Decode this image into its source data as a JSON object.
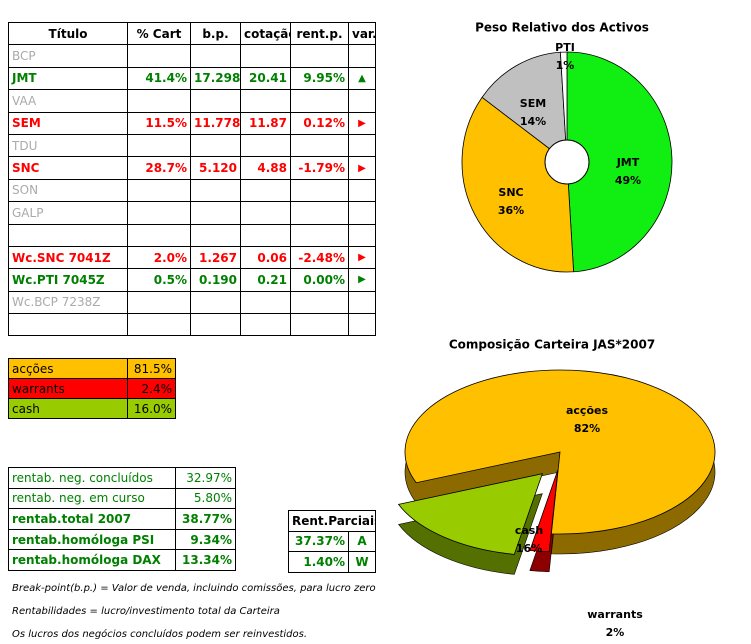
{
  "portfolio_table": {
    "header": [
      "Título",
      "% Cart",
      "b.p.",
      "cotação",
      "rent.p.",
      "var."
    ],
    "rows": [
      [
        "BCP"
      ],
      [
        "JMT",
        "41.4%",
        "17.298",
        "20.41",
        "9.95%",
        "▲"
      ],
      [
        "VAA"
      ],
      [
        "SEM",
        "11.5%",
        "11.778",
        "11.87",
        "0.12%",
        "▶"
      ],
      [
        "TDU"
      ],
      [
        "SNC",
        "28.7%",
        "5.120",
        "4.88",
        "-1.79%",
        "▶"
      ],
      [
        "SON"
      ],
      [
        "GALP"
      ],
      [
        "Wc.SNC 7041Z",
        "2.0%",
        "1.267",
        "0.06",
        "-2.48%",
        "▶"
      ],
      [
        "Wc.PTI 7045Z",
        "0.5%",
        "0.190",
        "0.21",
        "0.00%",
        "▶"
      ],
      [
        "Wc.BCP 7238Z"
      ]
    ]
  },
  "allocation": {
    "rows": [
      [
        "acções",
        "81.5%"
      ],
      [
        "warrants",
        "2.4%"
      ],
      [
        "cash",
        "16.0%"
      ]
    ]
  },
  "returns": {
    "rows": [
      [
        "rentab. neg. concluídos",
        "32.97%"
      ],
      [
        "rentab. neg. em curso",
        "5.80%"
      ],
      [
        "rentab.total 2007",
        "38.77%"
      ],
      [
        "rentab.homóloga PSI",
        "9.34%"
      ],
      [
        "rentab.homóloga DAX",
        "13.34%"
      ]
    ]
  },
  "partial_returns": {
    "header": "Rent.Parciais",
    "rows": [
      [
        "37.37%",
        "A"
      ],
      [
        "1.40%",
        "W"
      ]
    ]
  },
  "notes": [
    "Break-point(b.p.) = Valor de venda, incluindo comissões, para lucro zero",
    "Rentabilidades = lucro/investimento total da Carteira",
    "Os lucros dos negócios concluídos podem ser reinvestidos."
  ],
  "chart_data": [
    {
      "type": "pie",
      "title": "Peso Relativo dos Activos",
      "categories": [
        "JMT",
        "SNC",
        "SEM",
        "PTI"
      ],
      "values": [
        49,
        36,
        14,
        1
      ],
      "value_labels": [
        "49%",
        "36%",
        "14%",
        "1%"
      ],
      "colors": [
        "#11ee11",
        "#ffc000",
        "#c0c0c0",
        "#ffffff"
      ]
    },
    {
      "type": "pie3d",
      "title": "Composição Carteira JAS*2007",
      "categories": [
        "acções",
        "warrants",
        "cash"
      ],
      "values": [
        82,
        2,
        16
      ],
      "value_labels": [
        "82%",
        "2%",
        "16%"
      ],
      "colors": [
        "#ffc000",
        "#ff0000",
        "#99cc00"
      ]
    }
  ]
}
